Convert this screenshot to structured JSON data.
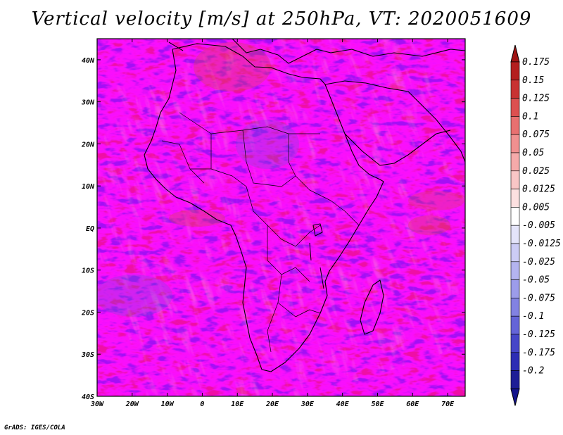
{
  "title": "Vertical velocity [m/s] at 250hPa, VT: 2020051609",
  "credit": "GrADS: IGES/COLA",
  "map": {
    "region": "Africa",
    "variable": "Vertical velocity",
    "units": "m/s",
    "level": "250hPa",
    "valid_time": "2020051609",
    "lon_range": [
      -30,
      75
    ],
    "lat_range": [
      -40,
      45
    ],
    "x_ticks": [
      {
        "value": -30,
        "label": "30W"
      },
      {
        "value": -20,
        "label": "20W"
      },
      {
        "value": -10,
        "label": "10W"
      },
      {
        "value": 0,
        "label": "0"
      },
      {
        "value": 10,
        "label": "10E"
      },
      {
        "value": 20,
        "label": "20E"
      },
      {
        "value": 30,
        "label": "30E"
      },
      {
        "value": 40,
        "label": "40E"
      },
      {
        "value": 50,
        "label": "50E"
      },
      {
        "value": 60,
        "label": "60E"
      },
      {
        "value": 70,
        "label": "70E"
      }
    ],
    "y_ticks": [
      {
        "value": 40,
        "label": "40N"
      },
      {
        "value": 30,
        "label": "30N"
      },
      {
        "value": 20,
        "label": "20N"
      },
      {
        "value": 10,
        "label": "10N"
      },
      {
        "value": 0,
        "label": "EQ"
      },
      {
        "value": -10,
        "label": "10S"
      },
      {
        "value": -20,
        "label": "20S"
      },
      {
        "value": -30,
        "label": "30S"
      },
      {
        "value": -40,
        "label": "40S"
      }
    ]
  },
  "colorbar": {
    "levels": [
      {
        "label": "0.175",
        "color": "#b41e1e"
      },
      {
        "label": "0.15",
        "color": "#c83232"
      },
      {
        "label": "0.125",
        "color": "#dc5050"
      },
      {
        "label": "0.1",
        "color": "#e87070"
      },
      {
        "label": "0.075",
        "color": "#f09090"
      },
      {
        "label": "0.05",
        "color": "#f5aaaa"
      },
      {
        "label": "0.025",
        "color": "#f9c6c6"
      },
      {
        "label": "0.0125",
        "color": "#fce0e0"
      },
      {
        "label": "0.005",
        "color": "#ffffff"
      },
      {
        "label": "-0.005",
        "color": "#e4e4fa"
      },
      {
        "label": "-0.0125",
        "color": "#ccccf5"
      },
      {
        "label": "-0.025",
        "color": "#b4b4f0"
      },
      {
        "label": "-0.05",
        "color": "#9c9cea"
      },
      {
        "label": "-0.075",
        "color": "#8282e2"
      },
      {
        "label": "-0.1",
        "color": "#6464d8"
      },
      {
        "label": "-0.125",
        "color": "#4646c8"
      },
      {
        "label": "-0.175",
        "color": "#2d2db4"
      },
      {
        "label": "-0.2",
        "color": "#1e1e96"
      }
    ],
    "top_triangle_color": "#a01414",
    "bottom_triangle_color": "#14148c"
  }
}
